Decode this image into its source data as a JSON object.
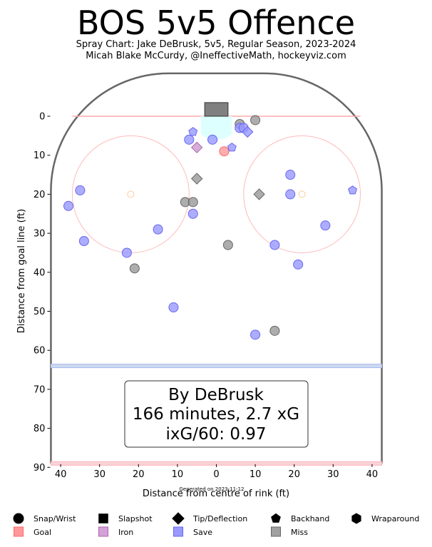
{
  "page": {
    "title": "BOS 5v5 Offence",
    "subtitle_line1": "Spray Chart: Jake DeBrusk, 5v5, Regular Season, 2023-2024",
    "subtitle_line2": "Micah Blake McCurdy, @IneffectiveMath, hockeyviz.com",
    "generated": "Generated on 2023-11-12"
  },
  "summary_box": {
    "line1": "By DeBrusk",
    "line2": "166 minutes, 2.7 xG",
    "line3": "ixG/60: 0.97"
  },
  "legend": {
    "shapes": [
      {
        "label": "Snap/Wrist",
        "shape": "circle"
      },
      {
        "label": "Slapshot",
        "shape": "square"
      },
      {
        "label": "Tip/Deflection",
        "shape": "diamond"
      },
      {
        "label": "Backhand",
        "shape": "pentagon"
      },
      {
        "label": "Wraparound",
        "shape": "hexagon"
      }
    ],
    "outcomes": [
      {
        "label": "Goal",
        "color": "#ff9999"
      },
      {
        "label": "Iron",
        "color": "#d4a0d8"
      },
      {
        "label": "Save",
        "color": "#9999ff"
      },
      {
        "label": "Miss",
        "color": "#a0a0a0"
      }
    ]
  },
  "colors": {
    "goal": "#ff9999",
    "iron": "#cc99cc",
    "save": "#9999ff",
    "miss": "#999999",
    "rink_border": "#666666",
    "goal_line": "#ffaaaa",
    "blue_line": "#aabbee",
    "circle": "#ffbbbb"
  },
  "chart_data": {
    "type": "scatter",
    "xlabel": "Distance from centre of rink (ft)",
    "ylabel": "Distance from goal line (ft)",
    "xlim": [
      42.5,
      -42.5
    ],
    "ylim": [
      -9,
      90
    ],
    "x_ticks": [
      {
        "value": -40,
        "label": "40"
      },
      {
        "value": -30,
        "label": "30"
      },
      {
        "value": -20,
        "label": "20"
      },
      {
        "value": -10,
        "label": "10"
      },
      {
        "value": 0,
        "label": "0"
      },
      {
        "value": 10,
        "label": "10"
      },
      {
        "value": 20,
        "label": "20"
      },
      {
        "value": 30,
        "label": "30"
      },
      {
        "value": 40,
        "label": "40"
      }
    ],
    "y_ticks": [
      {
        "value": 0,
        "label": "0"
      },
      {
        "value": 10,
        "label": "10"
      },
      {
        "value": 20,
        "label": "20"
      },
      {
        "value": 30,
        "label": "30"
      },
      {
        "value": 40,
        "label": "40"
      },
      {
        "value": 50,
        "label": "50"
      },
      {
        "value": 60,
        "label": "60"
      },
      {
        "value": 70,
        "label": "70"
      },
      {
        "value": 80,
        "label": "80"
      },
      {
        "value": 90,
        "label": "90"
      }
    ],
    "shots": [
      {
        "x": 6,
        "y": 2,
        "shape": "circle",
        "outcome": "miss"
      },
      {
        "x": 10,
        "y": 1,
        "shape": "circle",
        "outcome": "miss"
      },
      {
        "x": 6,
        "y": 3,
        "shape": "circle",
        "outcome": "save"
      },
      {
        "x": 7,
        "y": 3,
        "shape": "circle",
        "outcome": "save"
      },
      {
        "x": 8,
        "y": 4,
        "shape": "diamond",
        "outcome": "save"
      },
      {
        "x": -6,
        "y": 4,
        "shape": "pentagon",
        "outcome": "save"
      },
      {
        "x": -7,
        "y": 6,
        "shape": "circle",
        "outcome": "save"
      },
      {
        "x": -1,
        "y": 6,
        "shape": "circle",
        "outcome": "save"
      },
      {
        "x": -5,
        "y": 8,
        "shape": "diamond",
        "outcome": "iron"
      },
      {
        "x": 2,
        "y": 9,
        "shape": "circle",
        "outcome": "goal"
      },
      {
        "x": 4,
        "y": 8,
        "shape": "pentagon",
        "outcome": "save"
      },
      {
        "x": 19,
        "y": 15,
        "shape": "circle",
        "outcome": "save"
      },
      {
        "x": -5,
        "y": 16,
        "shape": "diamond",
        "outcome": "miss"
      },
      {
        "x": -35,
        "y": 19,
        "shape": "circle",
        "outcome": "save"
      },
      {
        "x": 35,
        "y": 19,
        "shape": "pentagon",
        "outcome": "save"
      },
      {
        "x": 11,
        "y": 20,
        "shape": "diamond",
        "outcome": "miss"
      },
      {
        "x": 19,
        "y": 20,
        "shape": "circle",
        "outcome": "save"
      },
      {
        "x": -8,
        "y": 22,
        "shape": "circle",
        "outcome": "miss"
      },
      {
        "x": -6,
        "y": 22,
        "shape": "circle",
        "outcome": "miss"
      },
      {
        "x": -38,
        "y": 23,
        "shape": "circle",
        "outcome": "save"
      },
      {
        "x": -6,
        "y": 25,
        "shape": "circle",
        "outcome": "save"
      },
      {
        "x": 28,
        "y": 28,
        "shape": "circle",
        "outcome": "save"
      },
      {
        "x": -15,
        "y": 29,
        "shape": "circle",
        "outcome": "save"
      },
      {
        "x": -34,
        "y": 32,
        "shape": "circle",
        "outcome": "save"
      },
      {
        "x": 3,
        "y": 33,
        "shape": "circle",
        "outcome": "miss"
      },
      {
        "x": 15,
        "y": 33,
        "shape": "circle",
        "outcome": "save"
      },
      {
        "x": -23,
        "y": 35,
        "shape": "circle",
        "outcome": "save"
      },
      {
        "x": 21,
        "y": 38,
        "shape": "circle",
        "outcome": "save"
      },
      {
        "x": -21,
        "y": 39,
        "shape": "circle",
        "outcome": "miss"
      },
      {
        "x": -11,
        "y": 49,
        "shape": "circle",
        "outcome": "save"
      },
      {
        "x": 15,
        "y": 55,
        "shape": "circle",
        "outcome": "miss"
      },
      {
        "x": 10,
        "y": 56,
        "shape": "circle",
        "outcome": "save"
      }
    ]
  }
}
